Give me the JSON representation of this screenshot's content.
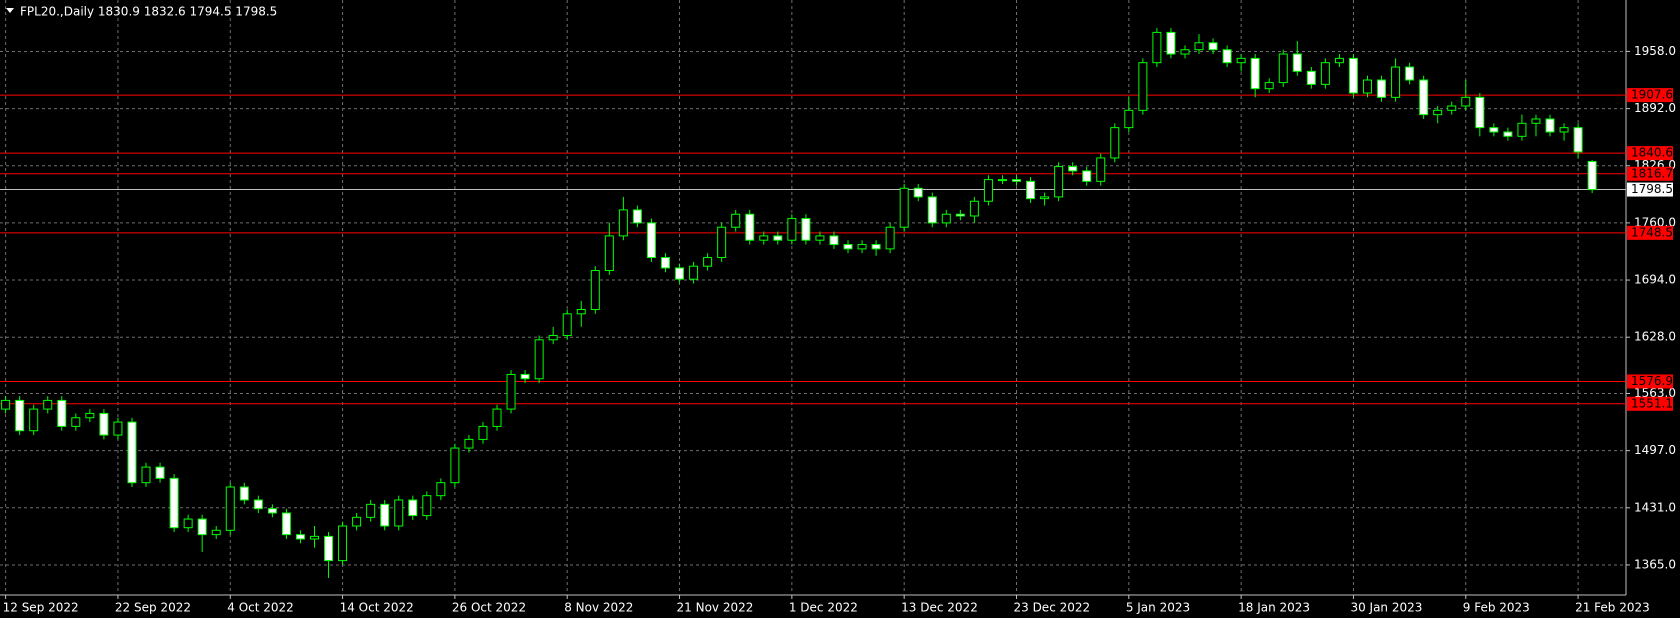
{
  "chart_data": {
    "type": "candlestick",
    "title": "FPL20.,Daily  1830.9 1832.6 1794.5 1798.5",
    "categories": [
      "12 Sep 2022",
      null,
      null,
      null,
      null,
      null,
      null,
      null,
      "22 Sep 2022",
      null,
      null,
      null,
      null,
      null,
      null,
      null,
      "4 Oct 2022",
      null,
      null,
      null,
      null,
      null,
      null,
      null,
      "14 Oct 2022",
      null,
      null,
      null,
      null,
      null,
      null,
      null,
      "26 Oct 2022",
      null,
      null,
      null,
      null,
      null,
      null,
      null,
      "8 Nov 2022",
      null,
      null,
      null,
      null,
      null,
      null,
      null,
      "21 Nov 2022",
      null,
      null,
      null,
      null,
      null,
      null,
      null,
      "1 Dec 2022",
      null,
      null,
      null,
      null,
      null,
      null,
      null,
      "13 Dec 2022",
      null,
      null,
      null,
      null,
      null,
      null,
      null,
      "23 Dec 2022",
      null,
      null,
      null,
      null,
      null,
      null,
      null,
      "5 Jan 2023",
      null,
      null,
      null,
      null,
      null,
      null,
      null,
      "18 Jan 2023",
      null,
      null,
      null,
      null,
      null,
      null,
      null,
      "30 Jan 2023",
      null,
      null,
      null,
      null,
      null,
      null,
      null,
      "9 Feb 2023",
      null,
      null,
      null,
      null,
      null,
      null,
      null,
      "21 Feb 2023",
      null
    ],
    "open": [
      1545,
      1555,
      1520,
      1545,
      1555,
      1525,
      1535,
      1540,
      1515,
      1530,
      1460,
      1478,
      1465,
      1408,
      1418,
      1400,
      1405,
      1455,
      1440,
      1430,
      1425,
      1400,
      1395,
      1398,
      1370,
      1410,
      1420,
      1435,
      1410,
      1440,
      1422,
      1445,
      1460,
      1500,
      1510,
      1525,
      1545,
      1585,
      1580,
      1625,
      1630,
      1655,
      1660,
      1705,
      1745,
      1775,
      1760,
      1720,
      1708,
      1695,
      1710,
      1720,
      1755,
      1770,
      1740,
      1745,
      1740,
      1765,
      1740,
      1745,
      1735,
      1730,
      1735,
      1730,
      1755,
      1800,
      1790,
      1760,
      1770,
      1768,
      1785,
      1810,
      1810,
      1808,
      1788,
      1790,
      1825,
      1820,
      1808,
      1835,
      1870,
      1890,
      1945,
      1980,
      1955,
      1960,
      1968,
      1960,
      1945,
      1950,
      1915,
      1922,
      1955,
      1935,
      1920,
      1945,
      1950,
      1910,
      1925,
      1905,
      1940,
      1925,
      1885,
      1890,
      1895,
      1905,
      1870,
      1865,
      1860,
      1875,
      1880,
      1865,
      1870,
      1830.9
    ],
    "high": [
      1560,
      1560,
      1550,
      1560,
      1560,
      1540,
      1545,
      1545,
      1535,
      1535,
      1483,
      1483,
      1470,
      1423,
      1423,
      1410,
      1460,
      1460,
      1445,
      1435,
      1430,
      1405,
      1410,
      1403,
      1415,
      1425,
      1440,
      1440,
      1445,
      1445,
      1450,
      1465,
      1505,
      1515,
      1530,
      1550,
      1590,
      1590,
      1630,
      1640,
      1660,
      1670,
      1710,
      1760,
      1790,
      1780,
      1765,
      1725,
      1713,
      1715,
      1725,
      1760,
      1775,
      1775,
      1750,
      1750,
      1770,
      1770,
      1750,
      1750,
      1740,
      1740,
      1740,
      1760,
      1805,
      1805,
      1795,
      1775,
      1775,
      1790,
      1815,
      1815,
      1815,
      1813,
      1795,
      1830,
      1830,
      1825,
      1840,
      1875,
      1905,
      1950,
      1985,
      1985,
      1965,
      1978,
      1973,
      1965,
      1955,
      1955,
      1927,
      1960,
      1970,
      1940,
      1950,
      1955,
      1955,
      1930,
      1930,
      1950,
      1945,
      1930,
      1895,
      1900,
      1925,
      1910,
      1875,
      1870,
      1885,
      1885,
      1885,
      1875,
      1875,
      1832.6
    ],
    "low": [
      1540,
      1515,
      1515,
      1540,
      1520,
      1520,
      1530,
      1510,
      1510,
      1455,
      1455,
      1460,
      1403,
      1403,
      1380,
      1395,
      1400,
      1435,
      1425,
      1420,
      1395,
      1390,
      1385,
      1350,
      1365,
      1405,
      1415,
      1405,
      1405,
      1417,
      1417,
      1440,
      1455,
      1495,
      1505,
      1520,
      1540,
      1575,
      1575,
      1620,
      1625,
      1640,
      1655,
      1700,
      1740,
      1755,
      1715,
      1703,
      1690,
      1690,
      1705,
      1715,
      1750,
      1735,
      1735,
      1735,
      1735,
      1735,
      1735,
      1730,
      1725,
      1725,
      1722,
      1725,
      1750,
      1785,
      1755,
      1755,
      1763,
      1760,
      1780,
      1805,
      1803,
      1783,
      1780,
      1785,
      1815,
      1803,
      1803,
      1830,
      1865,
      1885,
      1940,
      1950,
      1950,
      1955,
      1955,
      1940,
      1935,
      1905,
      1910,
      1917,
      1930,
      1915,
      1915,
      1940,
      1905,
      1905,
      1900,
      1900,
      1920,
      1880,
      1875,
      1885,
      1890,
      1860,
      1860,
      1855,
      1855,
      1860,
      1860,
      1855,
      1835,
      1794.5
    ],
    "close": [
      1555,
      1520,
      1545,
      1555,
      1525,
      1535,
      1540,
      1515,
      1530,
      1460,
      1478,
      1465,
      1408,
      1418,
      1400,
      1405,
      1455,
      1440,
      1430,
      1425,
      1400,
      1395,
      1398,
      1370,
      1410,
      1420,
      1435,
      1410,
      1440,
      1422,
      1445,
      1460,
      1500,
      1510,
      1525,
      1545,
      1585,
      1580,
      1625,
      1630,
      1655,
      1660,
      1705,
      1745,
      1775,
      1760,
      1720,
      1708,
      1695,
      1710,
      1720,
      1755,
      1770,
      1740,
      1745,
      1740,
      1765,
      1740,
      1745,
      1735,
      1730,
      1735,
      1730,
      1755,
      1800,
      1790,
      1760,
      1770,
      1768,
      1785,
      1810,
      1810,
      1808,
      1788,
      1790,
      1825,
      1820,
      1808,
      1835,
      1870,
      1890,
      1945,
      1980,
      1955,
      1960,
      1968,
      1960,
      1945,
      1950,
      1915,
      1922,
      1955,
      1935,
      1920,
      1945,
      1950,
      1910,
      1925,
      1905,
      1940,
      1925,
      1885,
      1890,
      1895,
      1905,
      1870,
      1865,
      1860,
      1875,
      1880,
      1865,
      1870,
      1842,
      1798.5
    ],
    "ylim": [
      1330.3,
      2017.4
    ],
    "yticks": [
      {
        "value": 1958,
        "label": "1958.0"
      },
      {
        "value": 1892,
        "label": "1892.0"
      },
      {
        "value": 1826,
        "label": "1826.0"
      },
      {
        "value": 1760,
        "label": "1760.0"
      },
      {
        "value": 1694,
        "label": "1694.0"
      },
      {
        "value": 1628,
        "label": "1628.0"
      },
      {
        "value": 1563,
        "label": "1563.0"
      },
      {
        "value": 1497,
        "label": "1497.0"
      },
      {
        "value": 1431,
        "label": "1431.0"
      },
      {
        "value": 1365,
        "label": "1365.0"
      }
    ],
    "grid": true,
    "bull_color": "#000000",
    "bear_color": "#ffffff",
    "wick_color": "#00ff00",
    "levels": [
      {
        "value": 1907.6,
        "color": "#ff0000"
      },
      {
        "value": 1840.6,
        "color": "#ff0000"
      },
      {
        "value": 1816.7,
        "color": "#ff0000"
      },
      {
        "value": 1748.5,
        "color": "#ff0000"
      },
      {
        "value": 1576.9,
        "color": "#ff0000"
      },
      {
        "value": 1551.1,
        "color": "#ff0000"
      }
    ],
    "last_price": {
      "value": 1798.5,
      "color": "#c0c0c0"
    }
  }
}
